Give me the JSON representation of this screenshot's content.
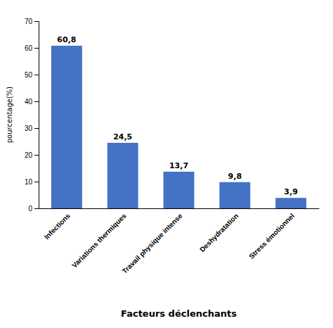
{
  "chart_data": {
    "type": "bar",
    "categories": [
      "Infections",
      "Variations thermiques",
      "Travail physique intense",
      "Deshydratation",
      "Stress émotionnel"
    ],
    "values": [
      60.8,
      24.5,
      13.7,
      9.8,
      3.9
    ],
    "value_labels": [
      "60,8",
      "24,5",
      "13,7",
      "9,8",
      "3,9"
    ],
    "color": "#4472C4",
    "xlabel": "Facteurs déclenchants",
    "ylabel": "pourcentage(%)",
    "ylim": [
      0,
      70
    ],
    "yticks": [
      0,
      10,
      20,
      30,
      40,
      50,
      60,
      70
    ],
    "grid": false,
    "data_labels": true
  }
}
